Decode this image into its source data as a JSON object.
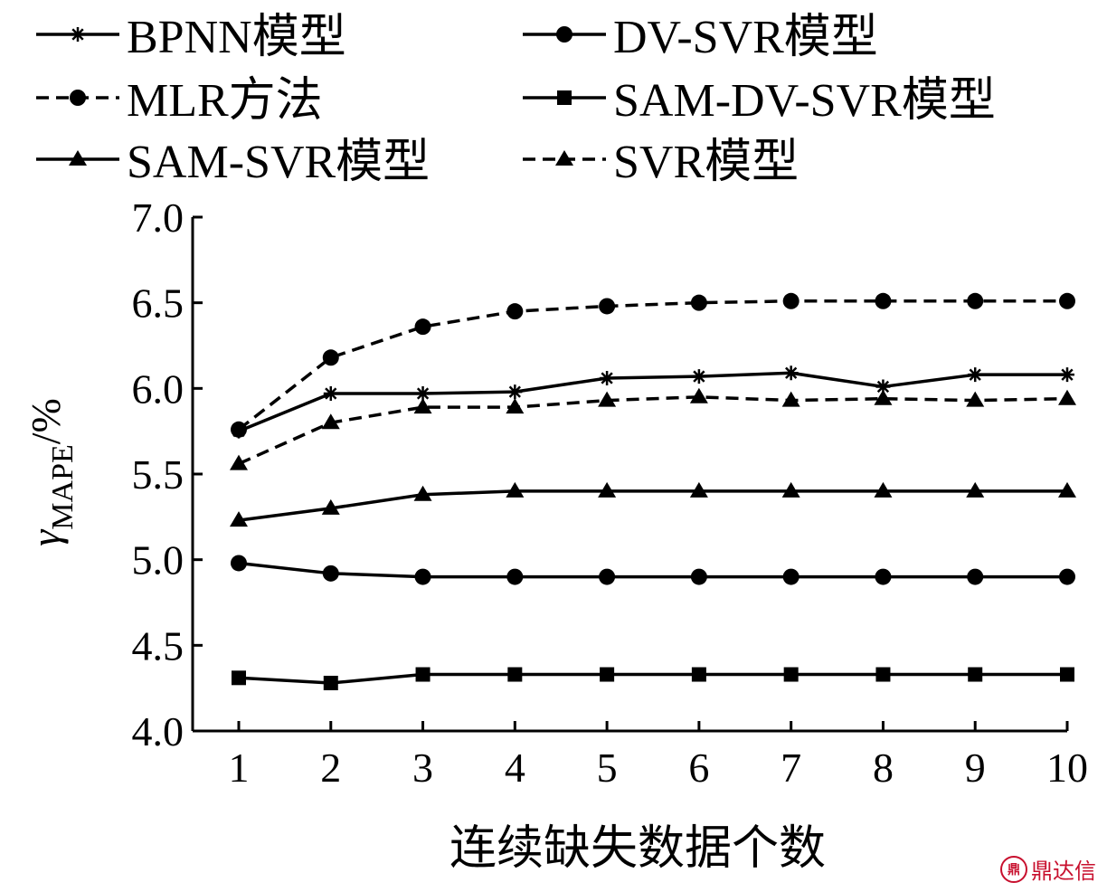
{
  "chart_data": {
    "type": "line",
    "xlabel": "连续缺失数据个数",
    "ylabel_main": "γ",
    "ylabel_sub": "MAPE",
    "ylabel_unit": "/%",
    "x": [
      1,
      2,
      3,
      4,
      5,
      6,
      7,
      8,
      9,
      10
    ],
    "x_tick_labels": [
      "1",
      "2",
      "3",
      "4",
      "5",
      "6",
      "7",
      "8",
      "9",
      "10"
    ],
    "ylim": [
      4.0,
      7.0
    ],
    "y_ticks": [
      4.0,
      4.5,
      5.0,
      5.5,
      6.0,
      6.5,
      7.0
    ],
    "y_tick_labels": [
      "4.0",
      "4.5",
      "5.0",
      "5.5",
      "6.0",
      "6.5",
      "7.0"
    ],
    "grid": false,
    "legend_position": "top",
    "series": [
      {
        "name": "BPNN模型",
        "marker": "star",
        "dash": false,
        "values": [
          5.75,
          5.97,
          5.97,
          5.98,
          6.06,
          6.07,
          6.09,
          6.01,
          6.08,
          6.08
        ]
      },
      {
        "name": "DV-SVR模型",
        "marker": "circle",
        "dash": false,
        "values": [
          4.98,
          4.92,
          4.9,
          4.9,
          4.9,
          4.9,
          4.9,
          4.9,
          4.9,
          4.9
        ]
      },
      {
        "name": "MLR方法",
        "marker": "circle",
        "dash": true,
        "values": [
          5.76,
          6.18,
          6.36,
          6.45,
          6.48,
          6.5,
          6.51,
          6.51,
          6.51,
          6.51
        ]
      },
      {
        "name": "SAM-DV-SVR模型",
        "marker": "square",
        "dash": false,
        "values": [
          4.31,
          4.28,
          4.33,
          4.33,
          4.33,
          4.33,
          4.33,
          4.33,
          4.33,
          4.33
        ]
      },
      {
        "name": "SAM-SVR模型",
        "marker": "triangle",
        "dash": false,
        "values": [
          5.23,
          5.3,
          5.38,
          5.4,
          5.4,
          5.4,
          5.4,
          5.4,
          5.4,
          5.4
        ]
      },
      {
        "name": "SVR模型",
        "marker": "triangle",
        "dash": true,
        "values": [
          5.56,
          5.8,
          5.89,
          5.89,
          5.93,
          5.95,
          5.93,
          5.94,
          5.93,
          5.94
        ]
      }
    ]
  },
  "watermark": {
    "logo": "鼎",
    "text": "鼎达信"
  }
}
